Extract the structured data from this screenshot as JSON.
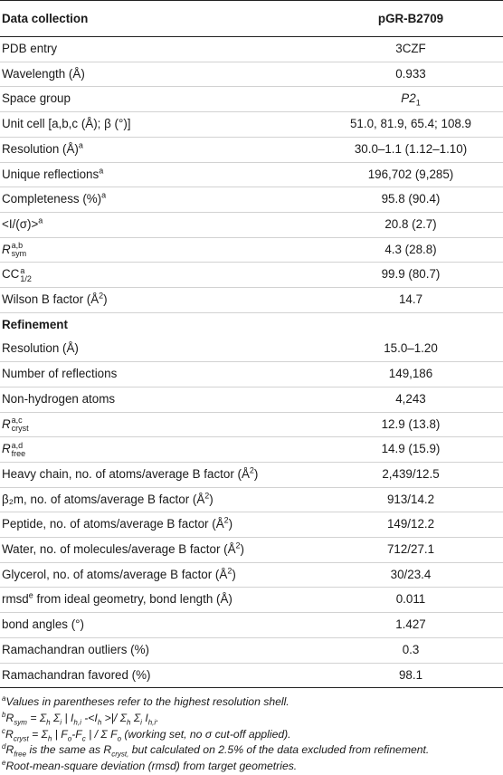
{
  "table": {
    "header": {
      "col1": "Data collection",
      "col2": "pGR-B2709"
    },
    "rows": [
      {
        "type": "row",
        "label": "PDB entry",
        "value": "3CZF"
      },
      {
        "type": "row",
        "label": "Wavelength (Å)",
        "value": "0.933"
      },
      {
        "type": "row",
        "label": "Space group",
        "value": "P2",
        "value_sub": "1"
      },
      {
        "type": "row",
        "label": "Unit cell [a,b,c (Å); β (°)]",
        "value": "51.0, 81.9, 65.4; 108.9"
      },
      {
        "type": "row",
        "label": "Resolution (Å)",
        "label_sup": "a",
        "value": "30.0–1.1 (1.12–1.10)"
      },
      {
        "type": "row",
        "label": "Unique reflections",
        "label_sup": "a",
        "value": "196,702 (9,285)"
      },
      {
        "type": "row",
        "label": "Completeness (%)",
        "label_sup": "a",
        "value": "95.8 (90.4)"
      },
      {
        "type": "row",
        "label": "<I/(σ)>",
        "label_sup": "a",
        "value": "20.8 (2.7)"
      },
      {
        "type": "row",
        "label": "R",
        "label_sub": "sym",
        "label_sup": "a,b",
        "value": "4.3 (28.8)"
      },
      {
        "type": "row",
        "label": "CC",
        "label_sub": "1/2",
        "label_sup": "a",
        "value": "99.9 (80.7)"
      },
      {
        "type": "row",
        "label": "Wilson B factor (Å",
        "label_sup": "2",
        "label_after": ")",
        "value": "14.7"
      },
      {
        "type": "section",
        "label": "Refinement",
        "value": ""
      },
      {
        "type": "row",
        "label": "Resolution (Å)",
        "value": "15.0–1.20"
      },
      {
        "type": "row",
        "label": "Number of reflections",
        "value": "149,186"
      },
      {
        "type": "row",
        "label": "Non-hydrogen atoms",
        "value": "4,243"
      },
      {
        "type": "row",
        "label": "R",
        "label_sub": "cryst",
        "label_sup": "a,c",
        "value": "12.9 (13.8)"
      },
      {
        "type": "row",
        "label": "R",
        "label_sub": "free",
        "label_sup": "a,d",
        "value": "14.9 (15.9)"
      },
      {
        "type": "row",
        "label": "Heavy chain, no. of atoms/average B factor (Å",
        "label_sup": "2",
        "label_after": ")",
        "value": "2,439/12.5"
      },
      {
        "type": "row",
        "label": "β₂m, no. of atoms/average B factor (Å",
        "label_sup": "2",
        "label_after": ")",
        "value": "913/14.2"
      },
      {
        "type": "row",
        "label": "Peptide, no. of atoms/average B factor (Å",
        "label_sup": "2",
        "label_after": ")",
        "value": "149/12.2"
      },
      {
        "type": "row",
        "label": "Water, no. of molecules/average B factor (Å",
        "label_sup": "2",
        "label_after": ")",
        "value": "712/27.1"
      },
      {
        "type": "row",
        "label": "Glycerol, no. of atoms/average B factor (Å",
        "label_sup": "2",
        "label_after": ")",
        "value": "30/23.4"
      },
      {
        "type": "row",
        "label": "rmsd",
        "label_sup": "e",
        "label_after": " from ideal geometry, bond length (Å)",
        "value": "0.011"
      },
      {
        "type": "row",
        "label": "bond angles (°)",
        "value": "1.427"
      },
      {
        "type": "row",
        "label": "Ramachandran outliers (%)",
        "value": "0.3"
      },
      {
        "type": "row",
        "label": "Ramachandran favored (%)",
        "value": "98.1"
      }
    ]
  },
  "footnotes": [
    {
      "mark": "a",
      "text": "Values in parentheses refer to the highest resolution shell."
    },
    {
      "mark": "b",
      "text": "R_sym = Σ_h Σ_i | I_h,i -<I_h >|/ Σ_h Σ_i I_h,i."
    },
    {
      "mark": "c",
      "text": "R_cryst = Σ_h | F_o-F_c | / Σ F_o (working set, no σ cut-off applied)."
    },
    {
      "mark": "d",
      "text": "R_free is the same as R_cryst, but calculated on 2.5% of the data excluded from refinement."
    },
    {
      "mark": "e",
      "text": "Root-mean-square deviation (rmsd) from target geometries."
    }
  ]
}
